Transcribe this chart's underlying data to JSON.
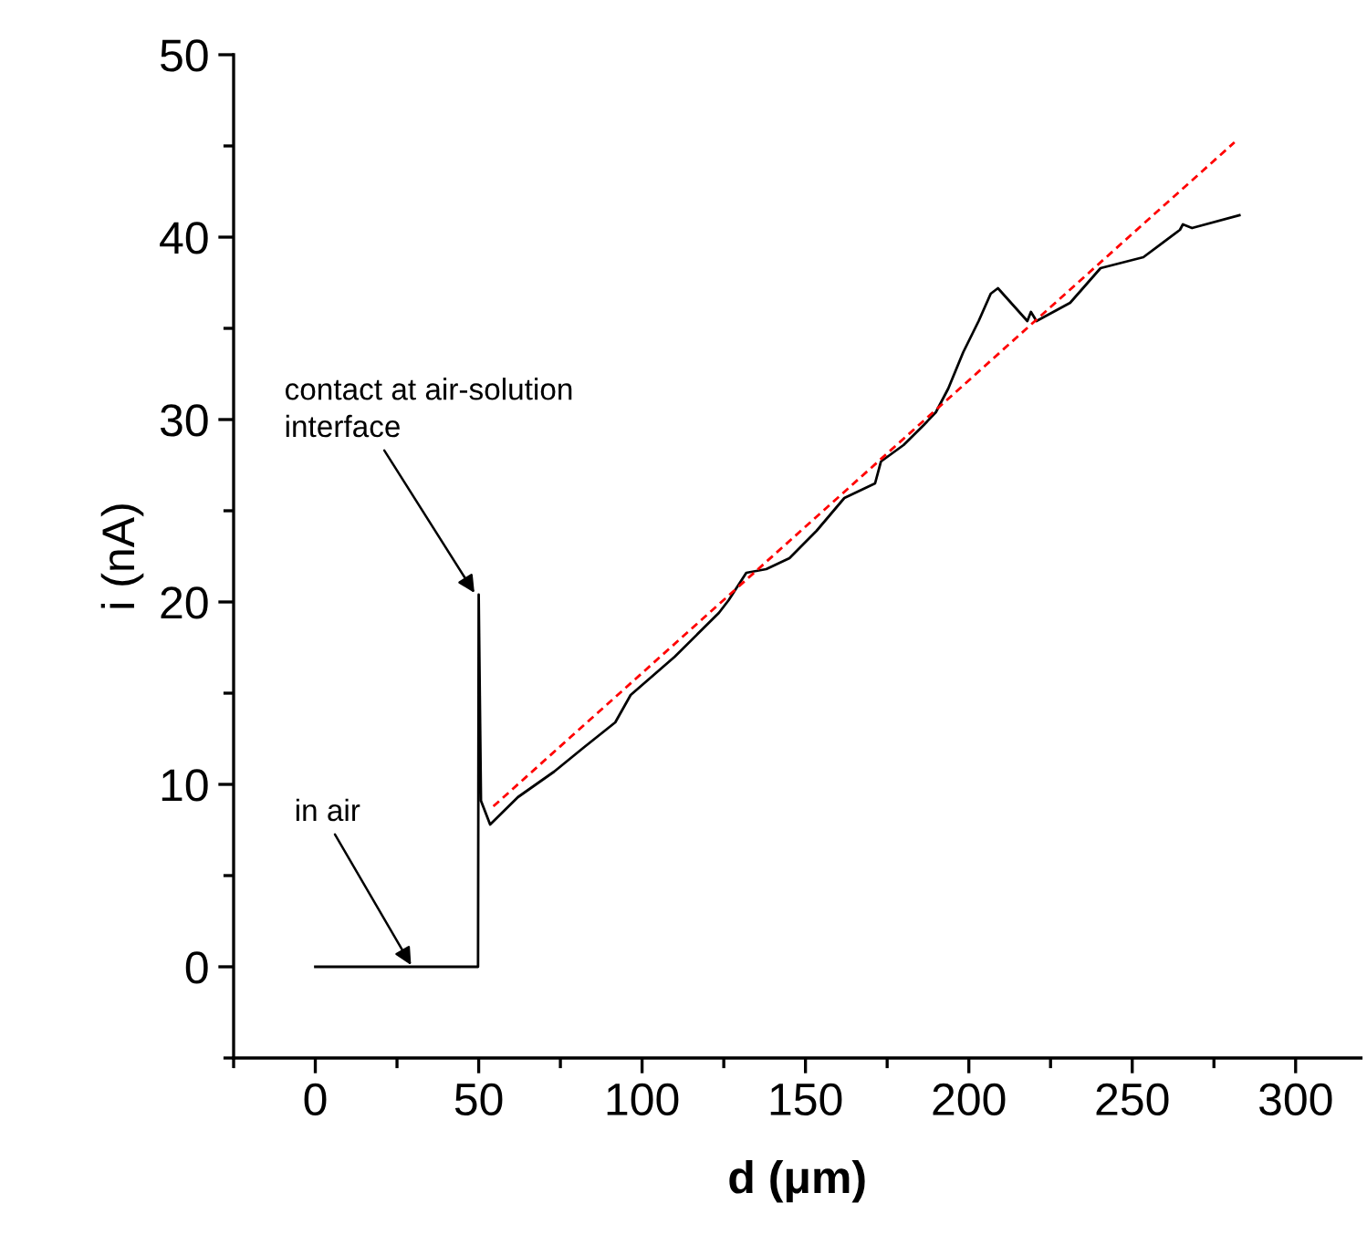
{
  "chart_data": {
    "type": "line",
    "xlabel": "d (μm)",
    "ylabel": "i (nA)",
    "xlim": [
      -25,
      320
    ],
    "ylim": [
      -5,
      50
    ],
    "xticks": [
      0,
      50,
      100,
      150,
      200,
      250,
      300
    ],
    "yticks": [
      0,
      10,
      20,
      30,
      40,
      50
    ],
    "grid": false,
    "legend": false,
    "marker": "none",
    "series": [
      {
        "color": "#000000",
        "line_style": "solid",
        "x": [
          0,
          49.8,
          50,
          50.7,
          53.5,
          62,
          73.1,
          82,
          91.8,
          96.5,
          110,
          123.5,
          126.5,
          131.9,
          138,
          145.1,
          153.4,
          161.9,
          171.3,
          173.1,
          180,
          186.2,
          189.9,
          193.7,
          198.3,
          203,
          206.7,
          208.9,
          217.9,
          219,
          220.7,
          231,
          240.3,
          253.4,
          264.6,
          265.5,
          268.3,
          282.8
        ],
        "values": [
          0,
          0,
          20.4,
          9.1,
          7.8,
          9.3,
          10.7,
          12.0,
          13.4,
          14.9,
          17.0,
          19.4,
          20.1,
          21.6,
          21.8,
          22.4,
          23.9,
          25.7,
          26.5,
          27.7,
          28.6,
          29.7,
          30.4,
          31.7,
          33.7,
          35.4,
          36.9,
          37.2,
          35.4,
          35.9,
          35.4,
          36.4,
          38.3,
          38.9,
          40.4,
          40.7,
          40.5,
          41.2
        ]
      },
      {
        "color": "#ff0000",
        "line_style": "dashed",
        "x": [
          54.5,
          281.3
        ],
        "values": [
          8.8,
          45.2
        ]
      }
    ],
    "annotations": [
      {
        "text": "in air",
        "x": 29.3,
        "y": 0.1
      },
      {
        "text": "contact at air-solution\ninterface",
        "x": 48.7,
        "y": 20.5
      }
    ]
  }
}
